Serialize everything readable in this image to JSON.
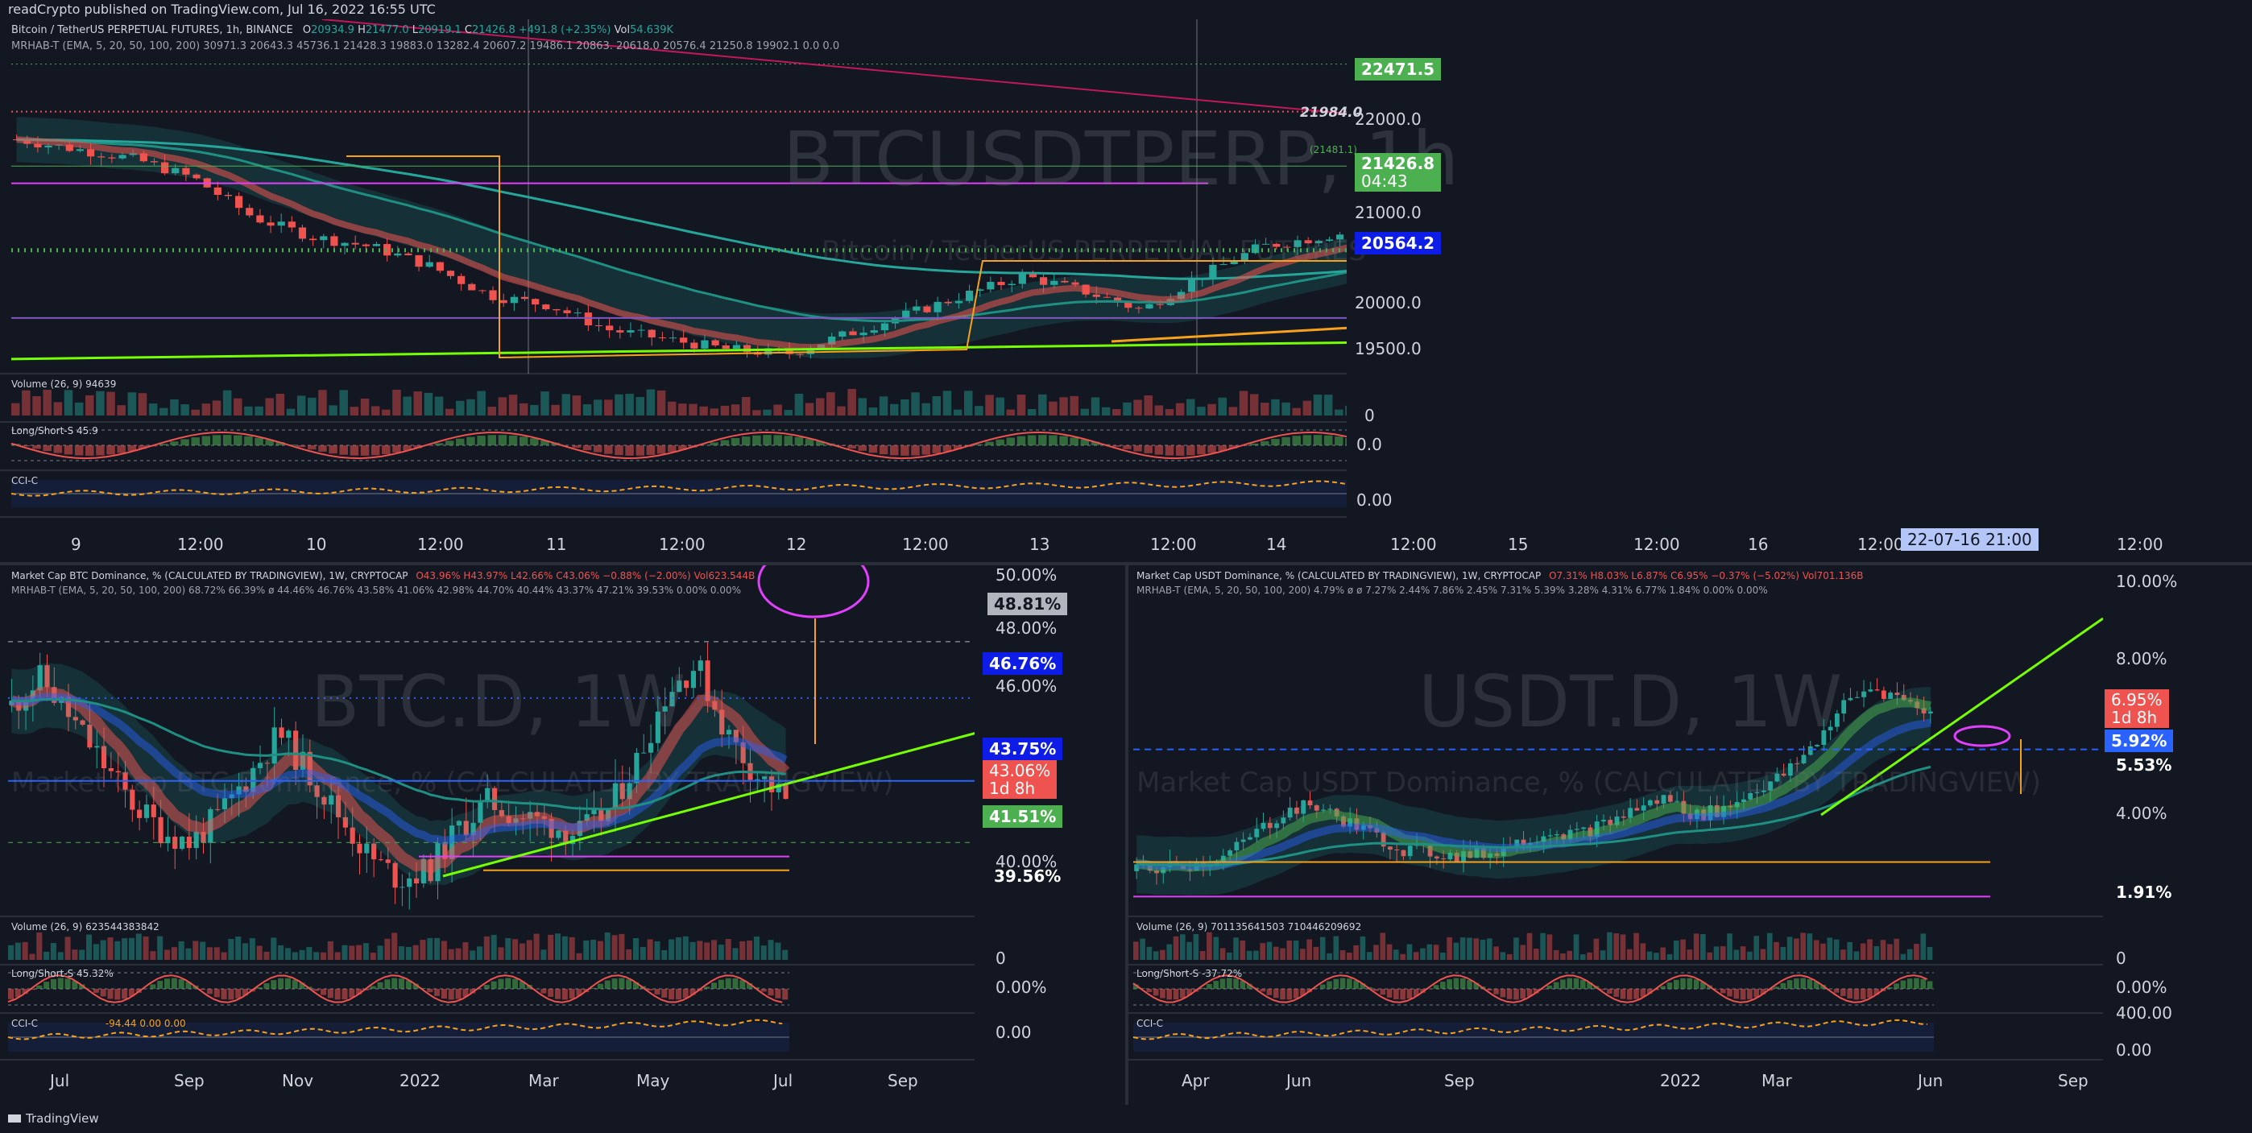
{
  "header": {
    "text": "readCrypto published on TradingView.com, Jul 16, 2022 16:55 UTC"
  },
  "footer": {
    "brand": "TradingView"
  },
  "colors": {
    "bg": "#131722",
    "up": "#26a69a",
    "down": "#ef5350",
    "green_tag": "#4caf50",
    "blue_tag": "#2962ff",
    "orange": "#f7a21b",
    "magenta": "#e040fb",
    "lime": "#76ff03"
  },
  "top": {
    "title": "Bitcoin / TetherUS PERPETUAL FUTURES, 1h, BINANCE",
    "ohlc": {
      "o_label": "O",
      "o": "20934.9",
      "h_label": "H",
      "h": "21477.0",
      "l_label": "L",
      "l": "20919.1",
      "c_label": "C",
      "c": "21426.8",
      "chg": "+491.8 (+2.35%)",
      "vol_label": "Vol",
      "vol": "54.639K"
    },
    "ema_line": "MRHAB-T (EMA, 5, 20, 50, 100, 200)  30971.3  20643.3  45736.1  21428.3  19883.0  13282.4  20607.2  19486.1  20863.   20618.0  20576.4  21250.8  19902.1  0.0  0.0",
    "watermark": "BTCUSDTPERP, 1h",
    "watermark2": "Bitcoin / TetherUS PERPETUAL FUTURES",
    "price_axis": [
      "22000.0",
      "21000.0",
      "20000.0",
      "19500.0"
    ],
    "tags": {
      "top_green": "22471.5",
      "red_dotted": "21984.0",
      "small": "(21481.1)",
      "price": "21426.8",
      "countdown": "04:43",
      "blue": "20564.2"
    },
    "time_axis": [
      "9",
      "12:00",
      "10",
      "12:00",
      "11",
      "12:00",
      "12",
      "12:00",
      "13",
      "12:00",
      "14",
      "12:00",
      "15",
      "12:00",
      "16",
      "12:00",
      "12:00"
    ],
    "cursor_time": "22-07-16   21:00",
    "volume_label": "Volume (26, 9)  94639",
    "volume_zero": "0",
    "ls_label": "Long/Short-S  45.9",
    "ls_value": "0.0",
    "cci_label": "CCI-C",
    "cci_value": "0.00"
  },
  "btcd": {
    "title": "Market Cap BTC Dominance, % (CALCULATED BY TRADINGVIEW), 1W, CRYPTOCAP",
    "ohlc": "O43.96%  H43.97%  L42.66%  C43.06%  −0.88% (−2.00%)  Vol623.544B",
    "ema_line": "MRHAB-T (EMA, 5, 20, 50, 100, 200)  68.72%  66.39%  ø  44.46%  46.76%  43.58%  41.06%  42.98%  44.70%  40.44%  43.37%  47.21%  39.53%  0.00%  0.00%",
    "watermark": "BTC.D, 1W",
    "watermark2": "Market Cap BTC Dominance, % (CALCULATED BY TRADINGVIEW)",
    "axis": [
      "50.00%",
      "48.00%",
      "46.00%",
      "40.00%"
    ],
    "tags": {
      "top_gray": "48.81%",
      "blue": "46.76%",
      "blue2": "43.75%",
      "price": "43.06%",
      "countdown": "1d 8h",
      "green": "41.51%",
      "bottom": "39.56%"
    },
    "time_axis": [
      "Jul",
      "Sep",
      "Nov",
      "2022",
      "Mar",
      "May",
      "Jul",
      "Sep"
    ],
    "volume_label": "Volume (26, 9)  623544383842",
    "volume_zero": "0",
    "ls_label": "Long/Short-S  45.32%",
    "ls_value": "0.00%",
    "cci_label": "CCI-C",
    "cci_inline": "-94.44  0.00  0.00",
    "cci_value": "0.00"
  },
  "usdtd": {
    "title": "Market Cap USDT Dominance, % (CALCULATED BY TRADINGVIEW), 1W, CRYPTOCAP",
    "ohlc": "O7.31%  H8.03%  L6.87%  C6.95%  −0.37% (−5.02%)  Vol701.136B",
    "ema_line": "MRHAB-T (EMA, 5, 20, 50, 100, 200)  4.79%  ø  ø  7.27%  2.44%  7.86%  2.45%  7.31%  5.39%  3.28%  4.31%  6.77%  1.84%  0.00%  0.00%",
    "watermark": "USDT.D, 1W",
    "watermark2": "Market Cap USDT Dominance, % (CALCULATED BY TRADINGVIEW)",
    "axis": [
      "10.00%",
      "8.00%",
      "4.00%"
    ],
    "tags": {
      "price": "6.95%",
      "countdown": "1d 8h",
      "blue": "5.92%",
      "white": "5.53%",
      "bottom": "1.91%"
    },
    "time_axis": [
      "Apr",
      "Jun",
      "Sep",
      "2022",
      "Mar",
      "Jun",
      "Sep"
    ],
    "volume_label": "Volume (26, 9)  701135641503  710446209692",
    "volume_zero": "0",
    "ls_label": "Long/Short-S  -37.72%",
    "ls_value": "0.00%",
    "cci_label": "CCI-C",
    "cci_top": "400.00",
    "cci_value": "0.00"
  },
  "chart_data": [
    {
      "type": "candlestick",
      "title": "Bitcoin / TetherUS PERPETUAL FUTURES, 1h, BINANCE",
      "x": [
        "9",
        "10",
        "11",
        "12",
        "13",
        "14",
        "15",
        "16"
      ],
      "close_path": [
        21700,
        21600,
        21500,
        21300,
        20900,
        20700,
        20600,
        20400,
        20100,
        20000,
        19750,
        19650,
        19550,
        19500,
        19700,
        19900,
        20100,
        20300,
        20150,
        19950,
        20300,
        20600,
        20700,
        20800,
        20900,
        21050,
        21150,
        20900,
        20750,
        20650,
        20700,
        20750,
        21426.8
      ],
      "levels": {
        "red_dotted": 21984.0,
        "green_dotted": 22471.5,
        "blue_line": 20564.2
      },
      "ylim": [
        19300,
        22600
      ]
    },
    {
      "type": "candlestick",
      "title": "Market Cap BTC Dominance, % (CALCULATED BY TRADINGVIEW), 1W, CRYPTOCAP",
      "x": [
        "Jul",
        "Sep",
        "Nov",
        "2022",
        "Mar",
        "May",
        "Jul",
        "Sep"
      ],
      "close_path": [
        46.5,
        47.5,
        46.0,
        44.5,
        43.0,
        42.0,
        41.5,
        42.5,
        44.0,
        45.5,
        44.0,
        42.5,
        41.0,
        40.2,
        40.5,
        42.0,
        43.0,
        42.5,
        42.2,
        41.8,
        42.6,
        44.5,
        47.0,
        48.0,
        45.5,
        44.0,
        43.06
      ],
      "ylim": [
        39,
        51
      ]
    },
    {
      "type": "candlestick",
      "title": "Market Cap USDT Dominance, % (CALCULATED BY TRADINGVIEW), 1W, CRYPTOCAP",
      "x": [
        "Apr",
        "Jun",
        "Sep",
        "2022",
        "Mar",
        "Jun",
        "Sep"
      ],
      "close_path": [
        2.6,
        2.7,
        2.8,
        3.0,
        3.6,
        4.2,
        4.4,
        4.0,
        3.6,
        3.2,
        3.1,
        3.0,
        3.1,
        3.4,
        3.7,
        3.6,
        3.9,
        4.3,
        4.6,
        4.1,
        4.3,
        4.8,
        5.2,
        6.0,
        7.1,
        7.6,
        7.3,
        6.95
      ],
      "ylim": [
        1.5,
        10.5
      ]
    }
  ]
}
